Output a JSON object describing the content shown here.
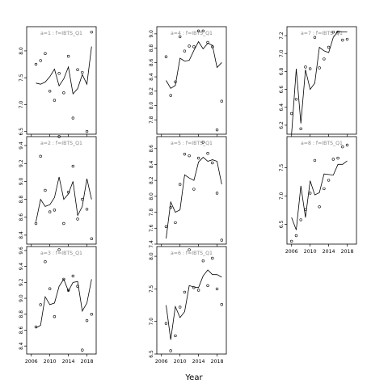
{
  "figure": {
    "xlabel": "Year"
  },
  "chart_data": [
    {
      "type": "line",
      "panel": "1",
      "title": "a=1 : f=IBTS_Q1",
      "xlim": [
        2005,
        2020
      ],
      "ylim": [
        6.45,
        8.45
      ],
      "xticks": [
        2006,
        2010,
        2014,
        2018
      ],
      "xticks_visible": false,
      "yticks": [
        6.5,
        7.0,
        7.5,
        8.0
      ],
      "points": [
        [
          2007,
          7.75
        ],
        [
          2008,
          7.82
        ],
        [
          2009,
          7.95
        ],
        [
          2010,
          7.25
        ],
        [
          2011,
          7.08
        ],
        [
          2012,
          7.58
        ],
        [
          2013,
          7.22
        ],
        [
          2014,
          7.9
        ],
        [
          2015,
          6.75
        ],
        [
          2016,
          7.65
        ],
        [
          2017,
          7.6
        ],
        [
          2018,
          6.5
        ],
        [
          2019,
          8.35
        ]
      ],
      "fitted": [
        [
          2007,
          7.4
        ],
        [
          2008,
          7.38
        ],
        [
          2009,
          7.42
        ],
        [
          2010,
          7.52
        ],
        [
          2011,
          7.66
        ],
        [
          2012,
          7.35
        ],
        [
          2013,
          7.48
        ],
        [
          2014,
          7.7
        ],
        [
          2015,
          7.2
        ],
        [
          2016,
          7.3
        ],
        [
          2017,
          7.56
        ],
        [
          2018,
          7.38
        ],
        [
          2019,
          8.08
        ]
      ]
    },
    {
      "type": "line",
      "panel": "2",
      "title": "a=2 : f=IBTS_Q1",
      "xlim": [
        2005,
        2020
      ],
      "ylim": [
        8.3,
        9.5
      ],
      "xticks": [
        2006,
        2010,
        2014,
        2018
      ],
      "xticks_visible": false,
      "yticks": [
        8.4,
        8.6,
        8.8,
        9.0,
        9.2,
        9.4
      ],
      "points": [
        [
          2007,
          8.53
        ],
        [
          2008,
          9.28
        ],
        [
          2009,
          8.9
        ],
        [
          2010,
          8.66
        ],
        [
          2011,
          8.68
        ],
        [
          2012,
          9.5
        ],
        [
          2013,
          8.53
        ],
        [
          2014,
          8.88
        ],
        [
          2015,
          9.17
        ],
        [
          2016,
          8.58
        ],
        [
          2017,
          8.8
        ],
        [
          2018,
          8.69
        ],
        [
          2019,
          8.36
        ]
      ],
      "fitted": [
        [
          2007,
          8.55
        ],
        [
          2008,
          8.8
        ],
        [
          2009,
          8.72
        ],
        [
          2010,
          8.74
        ],
        [
          2011,
          8.82
        ],
        [
          2012,
          9.05
        ],
        [
          2013,
          8.8
        ],
        [
          2014,
          8.86
        ],
        [
          2015,
          9.0
        ],
        [
          2016,
          8.62
        ],
        [
          2017,
          8.72
        ],
        [
          2018,
          9.03
        ],
        [
          2019,
          8.8
        ]
      ]
    },
    {
      "type": "line",
      "panel": "3",
      "title": "a=3 : f=IBTS_Q1",
      "xlim": [
        2005,
        2020
      ],
      "ylim": [
        8.3,
        9.65
      ],
      "xticks": [
        2006,
        2010,
        2014,
        2018
      ],
      "xticks_visible": true,
      "yticks": [
        8.4,
        8.6,
        8.8,
        9.0,
        9.2,
        9.4,
        9.6
      ],
      "points": [
        [
          2007,
          8.64
        ],
        [
          2008,
          8.92
        ],
        [
          2009,
          9.46
        ],
        [
          2010,
          9.12
        ],
        [
          2011,
          8.77
        ],
        [
          2012,
          9.61
        ],
        [
          2013,
          9.24
        ],
        [
          2014,
          9.1
        ],
        [
          2015,
          9.28
        ],
        [
          2016,
          9.15
        ],
        [
          2017,
          8.35
        ],
        [
          2018,
          8.72
        ],
        [
          2019,
          8.8
        ]
      ],
      "fitted": [
        [
          2007,
          8.63
        ],
        [
          2008,
          8.66
        ],
        [
          2009,
          9.02
        ],
        [
          2010,
          8.92
        ],
        [
          2011,
          8.94
        ],
        [
          2012,
          9.15
        ],
        [
          2013,
          9.24
        ],
        [
          2014,
          9.09
        ],
        [
          2015,
          9.2
        ],
        [
          2016,
          9.21
        ],
        [
          2017,
          8.84
        ],
        [
          2018,
          8.94
        ],
        [
          2019,
          9.24
        ]
      ]
    },
    {
      "type": "line",
      "panel": "4",
      "title": "a=4 : f=IBTS_Q1",
      "xlim": [
        2005,
        2020
      ],
      "ylim": [
        7.6,
        9.1
      ],
      "xticks": [
        2006,
        2010,
        2014,
        2018
      ],
      "xticks_visible": false,
      "yticks": [
        7.8,
        8.0,
        8.2,
        8.4,
        8.6,
        8.8,
        9.0
      ],
      "points": [
        [
          2007,
          8.68
        ],
        [
          2008,
          8.14
        ],
        [
          2009,
          8.33
        ],
        [
          2010,
          8.96
        ],
        [
          2011,
          8.76
        ],
        [
          2012,
          8.83
        ],
        [
          2013,
          8.82
        ],
        [
          2014,
          9.04
        ],
        [
          2015,
          9.04
        ],
        [
          2016,
          8.88
        ],
        [
          2017,
          8.82
        ],
        [
          2018,
          7.66
        ],
        [
          2019,
          8.06
        ]
      ],
      "fitted": [
        [
          2007,
          8.35
        ],
        [
          2008,
          8.24
        ],
        [
          2009,
          8.28
        ],
        [
          2010,
          8.66
        ],
        [
          2011,
          8.62
        ],
        [
          2012,
          8.63
        ],
        [
          2013,
          8.77
        ],
        [
          2014,
          8.89
        ],
        [
          2015,
          8.79
        ],
        [
          2016,
          8.87
        ],
        [
          2017,
          8.84
        ],
        [
          2018,
          8.53
        ],
        [
          2019,
          8.6
        ]
      ]
    },
    {
      "type": "line",
      "panel": "5",
      "title": "a=5 : f=IBTS_Q1",
      "xlim": [
        2005,
        2020
      ],
      "ylim": [
        7.4,
        8.75
      ],
      "xticks": [
        2006,
        2010,
        2014,
        2018
      ],
      "xticks_visible": false,
      "yticks": [
        7.4,
        7.6,
        7.8,
        8.0,
        8.2,
        8.4,
        8.6
      ],
      "points": [
        [
          2007,
          7.62
        ],
        [
          2008,
          7.86
        ],
        [
          2009,
          7.67
        ],
        [
          2010,
          8.15
        ],
        [
          2011,
          8.53
        ],
        [
          2012,
          8.51
        ],
        [
          2013,
          8.09
        ],
        [
          2014,
          8.48
        ],
        [
          2015,
          8.68
        ],
        [
          2016,
          8.54
        ],
        [
          2017,
          8.42
        ],
        [
          2018,
          8.04
        ],
        [
          2019,
          7.45
        ]
      ],
      "fitted": [
        [
          2007,
          7.47
        ],
        [
          2008,
          7.93
        ],
        [
          2009,
          7.8
        ],
        [
          2010,
          7.83
        ],
        [
          2011,
          8.27
        ],
        [
          2012,
          8.23
        ],
        [
          2013,
          8.2
        ],
        [
          2014,
          8.43
        ],
        [
          2015,
          8.49
        ],
        [
          2016,
          8.44
        ],
        [
          2017,
          8.46
        ],
        [
          2018,
          8.44
        ],
        [
          2019,
          8.15
        ]
      ]
    },
    {
      "type": "line",
      "panel": "6",
      "title": "a=6 : f=IBTS_Q1",
      "xlim": [
        2005,
        2020
      ],
      "ylim": [
        6.5,
        8.15
      ],
      "xticks": [
        2006,
        2010,
        2014,
        2018
      ],
      "xticks_visible": true,
      "yticks": [
        6.5,
        7.0,
        7.5,
        8.0
      ],
      "points": [
        [
          2007,
          6.97
        ],
        [
          2008,
          6.55
        ],
        [
          2009,
          6.78
        ],
        [
          2010,
          7.22
        ],
        [
          2011,
          7.45
        ],
        [
          2012,
          8.1
        ],
        [
          2013,
          7.52
        ],
        [
          2014,
          7.48
        ],
        [
          2015,
          7.93
        ],
        [
          2016,
          7.55
        ],
        [
          2017,
          7.97
        ],
        [
          2018,
          7.5
        ],
        [
          2019,
          7.26
        ]
      ],
      "fitted": [
        [
          2007,
          7.25
        ],
        [
          2008,
          6.72
        ],
        [
          2009,
          7.23
        ],
        [
          2010,
          7.06
        ],
        [
          2011,
          7.15
        ],
        [
          2012,
          7.55
        ],
        [
          2013,
          7.53
        ],
        [
          2014,
          7.52
        ],
        [
          2015,
          7.7
        ],
        [
          2016,
          7.79
        ],
        [
          2017,
          7.72
        ],
        [
          2018,
          7.72
        ],
        [
          2019,
          7.68
        ]
      ]
    },
    {
      "type": "line",
      "panel": "7",
      "title": "a=7 : f=IBTS_Q1",
      "xlim": [
        2005,
        2020
      ],
      "ylim": [
        6.1,
        7.3
      ],
      "xticks": [
        2006,
        2010,
        2014,
        2018
      ],
      "xticks_visible": false,
      "yticks": [
        6.2,
        6.4,
        6.6,
        6.8,
        7.0,
        7.2
      ],
      "points": [
        [
          2006,
          6.33
        ],
        [
          2007,
          6.49
        ],
        [
          2008,
          6.16
        ],
        [
          2009,
          6.85
        ],
        [
          2010,
          6.83
        ],
        [
          2011,
          7.18
        ],
        [
          2012,
          6.84
        ],
        [
          2013,
          6.94
        ],
        [
          2014,
          7.07
        ],
        [
          2015,
          7.24
        ],
        [
          2016,
          7.24
        ],
        [
          2017,
          7.15
        ],
        [
          2018,
          7.16
        ]
      ],
      "fitted": [
        [
          2006,
          6.1
        ],
        [
          2007,
          6.83
        ],
        [
          2008,
          6.22
        ],
        [
          2009,
          6.82
        ],
        [
          2010,
          6.6
        ],
        [
          2011,
          6.67
        ],
        [
          2012,
          7.07
        ],
        [
          2013,
          7.03
        ],
        [
          2014,
          7.01
        ],
        [
          2015,
          7.18
        ],
        [
          2016,
          7.25
        ],
        [
          2017,
          7.24
        ],
        [
          2018,
          7.24
        ]
      ]
    },
    {
      "type": "line",
      "panel": "8",
      "title": "a=8 : f=IBTS_Q1",
      "xlim": [
        2005,
        2020
      ],
      "ylim": [
        6.15,
        8.05
      ],
      "xticks": [
        2006,
        2010,
        2014,
        2018
      ],
      "xticks_visible": true,
      "yticks": [
        6.5,
        7.0,
        7.5
      ],
      "points": [
        [
          2006,
          6.2
        ],
        [
          2007,
          6.3
        ],
        [
          2008,
          6.58
        ],
        [
          2009,
          6.76
        ],
        [
          2010,
          7.05
        ],
        [
          2011,
          7.63
        ],
        [
          2012,
          6.81
        ],
        [
          2013,
          7.13
        ],
        [
          2014,
          7.28
        ],
        [
          2015,
          7.65
        ],
        [
          2016,
          7.67
        ],
        [
          2017,
          7.87
        ],
        [
          2018,
          7.9
        ]
      ],
      "fitted": [
        [
          2006,
          6.62
        ],
        [
          2007,
          6.4
        ],
        [
          2008,
          7.18
        ],
        [
          2009,
          6.62
        ],
        [
          2010,
          7.27
        ],
        [
          2011,
          7.02
        ],
        [
          2012,
          7.06
        ],
        [
          2013,
          7.39
        ],
        [
          2014,
          7.38
        ],
        [
          2015,
          7.37
        ],
        [
          2016,
          7.56
        ],
        [
          2017,
          7.56
        ],
        [
          2018,
          7.62
        ]
      ]
    }
  ]
}
